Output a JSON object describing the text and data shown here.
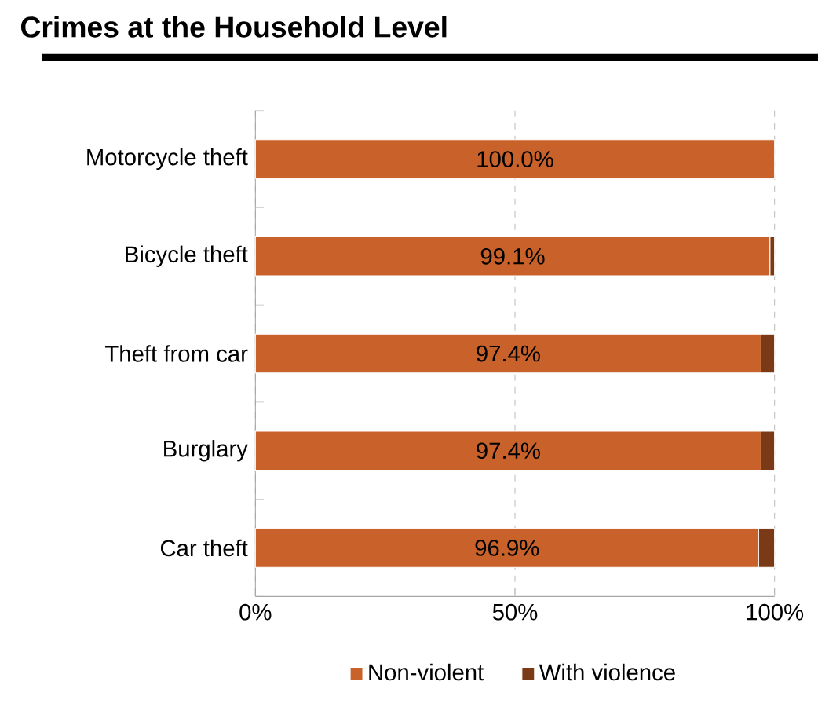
{
  "chart_data": {
    "type": "bar",
    "orientation": "horizontal",
    "stacked": true,
    "title": "Crimes at the Household Level",
    "categories": [
      "Motorcycle theft",
      "Bicycle theft",
      "Theft from car",
      "Burglary",
      "Car theft"
    ],
    "series": [
      {
        "name": "Non-violent",
        "color": "#c8622a",
        "values": [
          100.0,
          99.1,
          97.4,
          97.4,
          96.9
        ],
        "value_labels": [
          "100.0%",
          "99.1%",
          "97.4%",
          "97.4%",
          "96.9%"
        ]
      },
      {
        "name": "With violence",
        "color": "#7b3a17",
        "values": [
          0.0,
          0.9,
          2.6,
          2.6,
          3.1
        ]
      }
    ],
    "xlim": [
      0,
      100
    ],
    "xticks": [
      {
        "value": 0,
        "label": "0%"
      },
      {
        "value": 50,
        "label": "50%"
      },
      {
        "value": 100,
        "label": "100%"
      }
    ],
    "grid": "x",
    "legend": "bottom"
  }
}
